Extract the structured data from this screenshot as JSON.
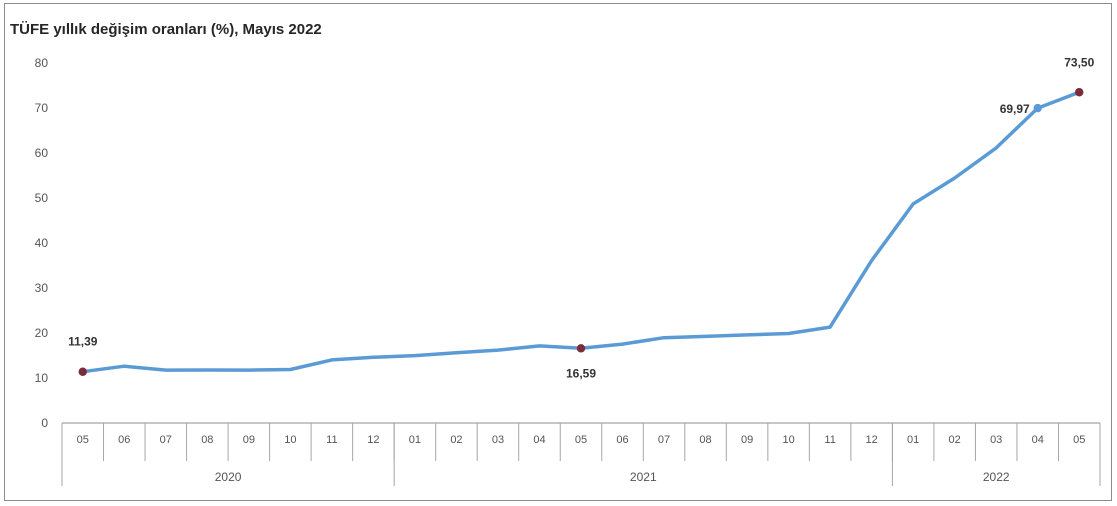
{
  "chart_data": {
    "type": "line",
    "title": "TÜFE yıllık değişim oranları (%), Mayıs 2022",
    "xlabel": "",
    "ylabel": "",
    "ylim": [
      0,
      80
    ],
    "yticks": [
      "0",
      "10",
      "20",
      "30",
      "40",
      "50",
      "60",
      "70",
      "80"
    ],
    "grid": false,
    "categories": [
      "05",
      "06",
      "07",
      "08",
      "09",
      "10",
      "11",
      "12",
      "01",
      "02",
      "03",
      "04",
      "05",
      "06",
      "07",
      "08",
      "09",
      "10",
      "11",
      "12",
      "01",
      "02",
      "03",
      "04",
      "05"
    ],
    "years": [
      {
        "label": "2020",
        "start": 0,
        "end": 7
      },
      {
        "label": "2021",
        "start": 8,
        "end": 19
      },
      {
        "label": "2022",
        "start": 20,
        "end": 24
      }
    ],
    "series": [
      {
        "values": [
          11.39,
          12.62,
          11.76,
          11.77,
          11.75,
          11.89,
          14.03,
          14.6,
          14.97,
          15.61,
          16.19,
          17.14,
          16.59,
          17.53,
          18.95,
          19.25,
          19.58,
          19.89,
          21.31,
          36.08,
          48.69,
          54.44,
          61.14,
          69.97,
          73.5
        ],
        "color": "#5b9bd5"
      }
    ],
    "markers": [
      {
        "index": 0,
        "color": "#7b2c3b"
      },
      {
        "index": 12,
        "color": "#7b2c3b"
      },
      {
        "index": 23,
        "color": "#5b9bd5"
      },
      {
        "index": 24,
        "color": "#7b2c3b"
      }
    ],
    "data_labels": [
      {
        "index": 0,
        "text": "11,39",
        "position": "above"
      },
      {
        "index": 12,
        "text": "16,59",
        "position": "below"
      },
      {
        "index": 23,
        "text": "69,97",
        "position": "left"
      },
      {
        "index": 24,
        "text": "73,50",
        "position": "above"
      }
    ]
  }
}
